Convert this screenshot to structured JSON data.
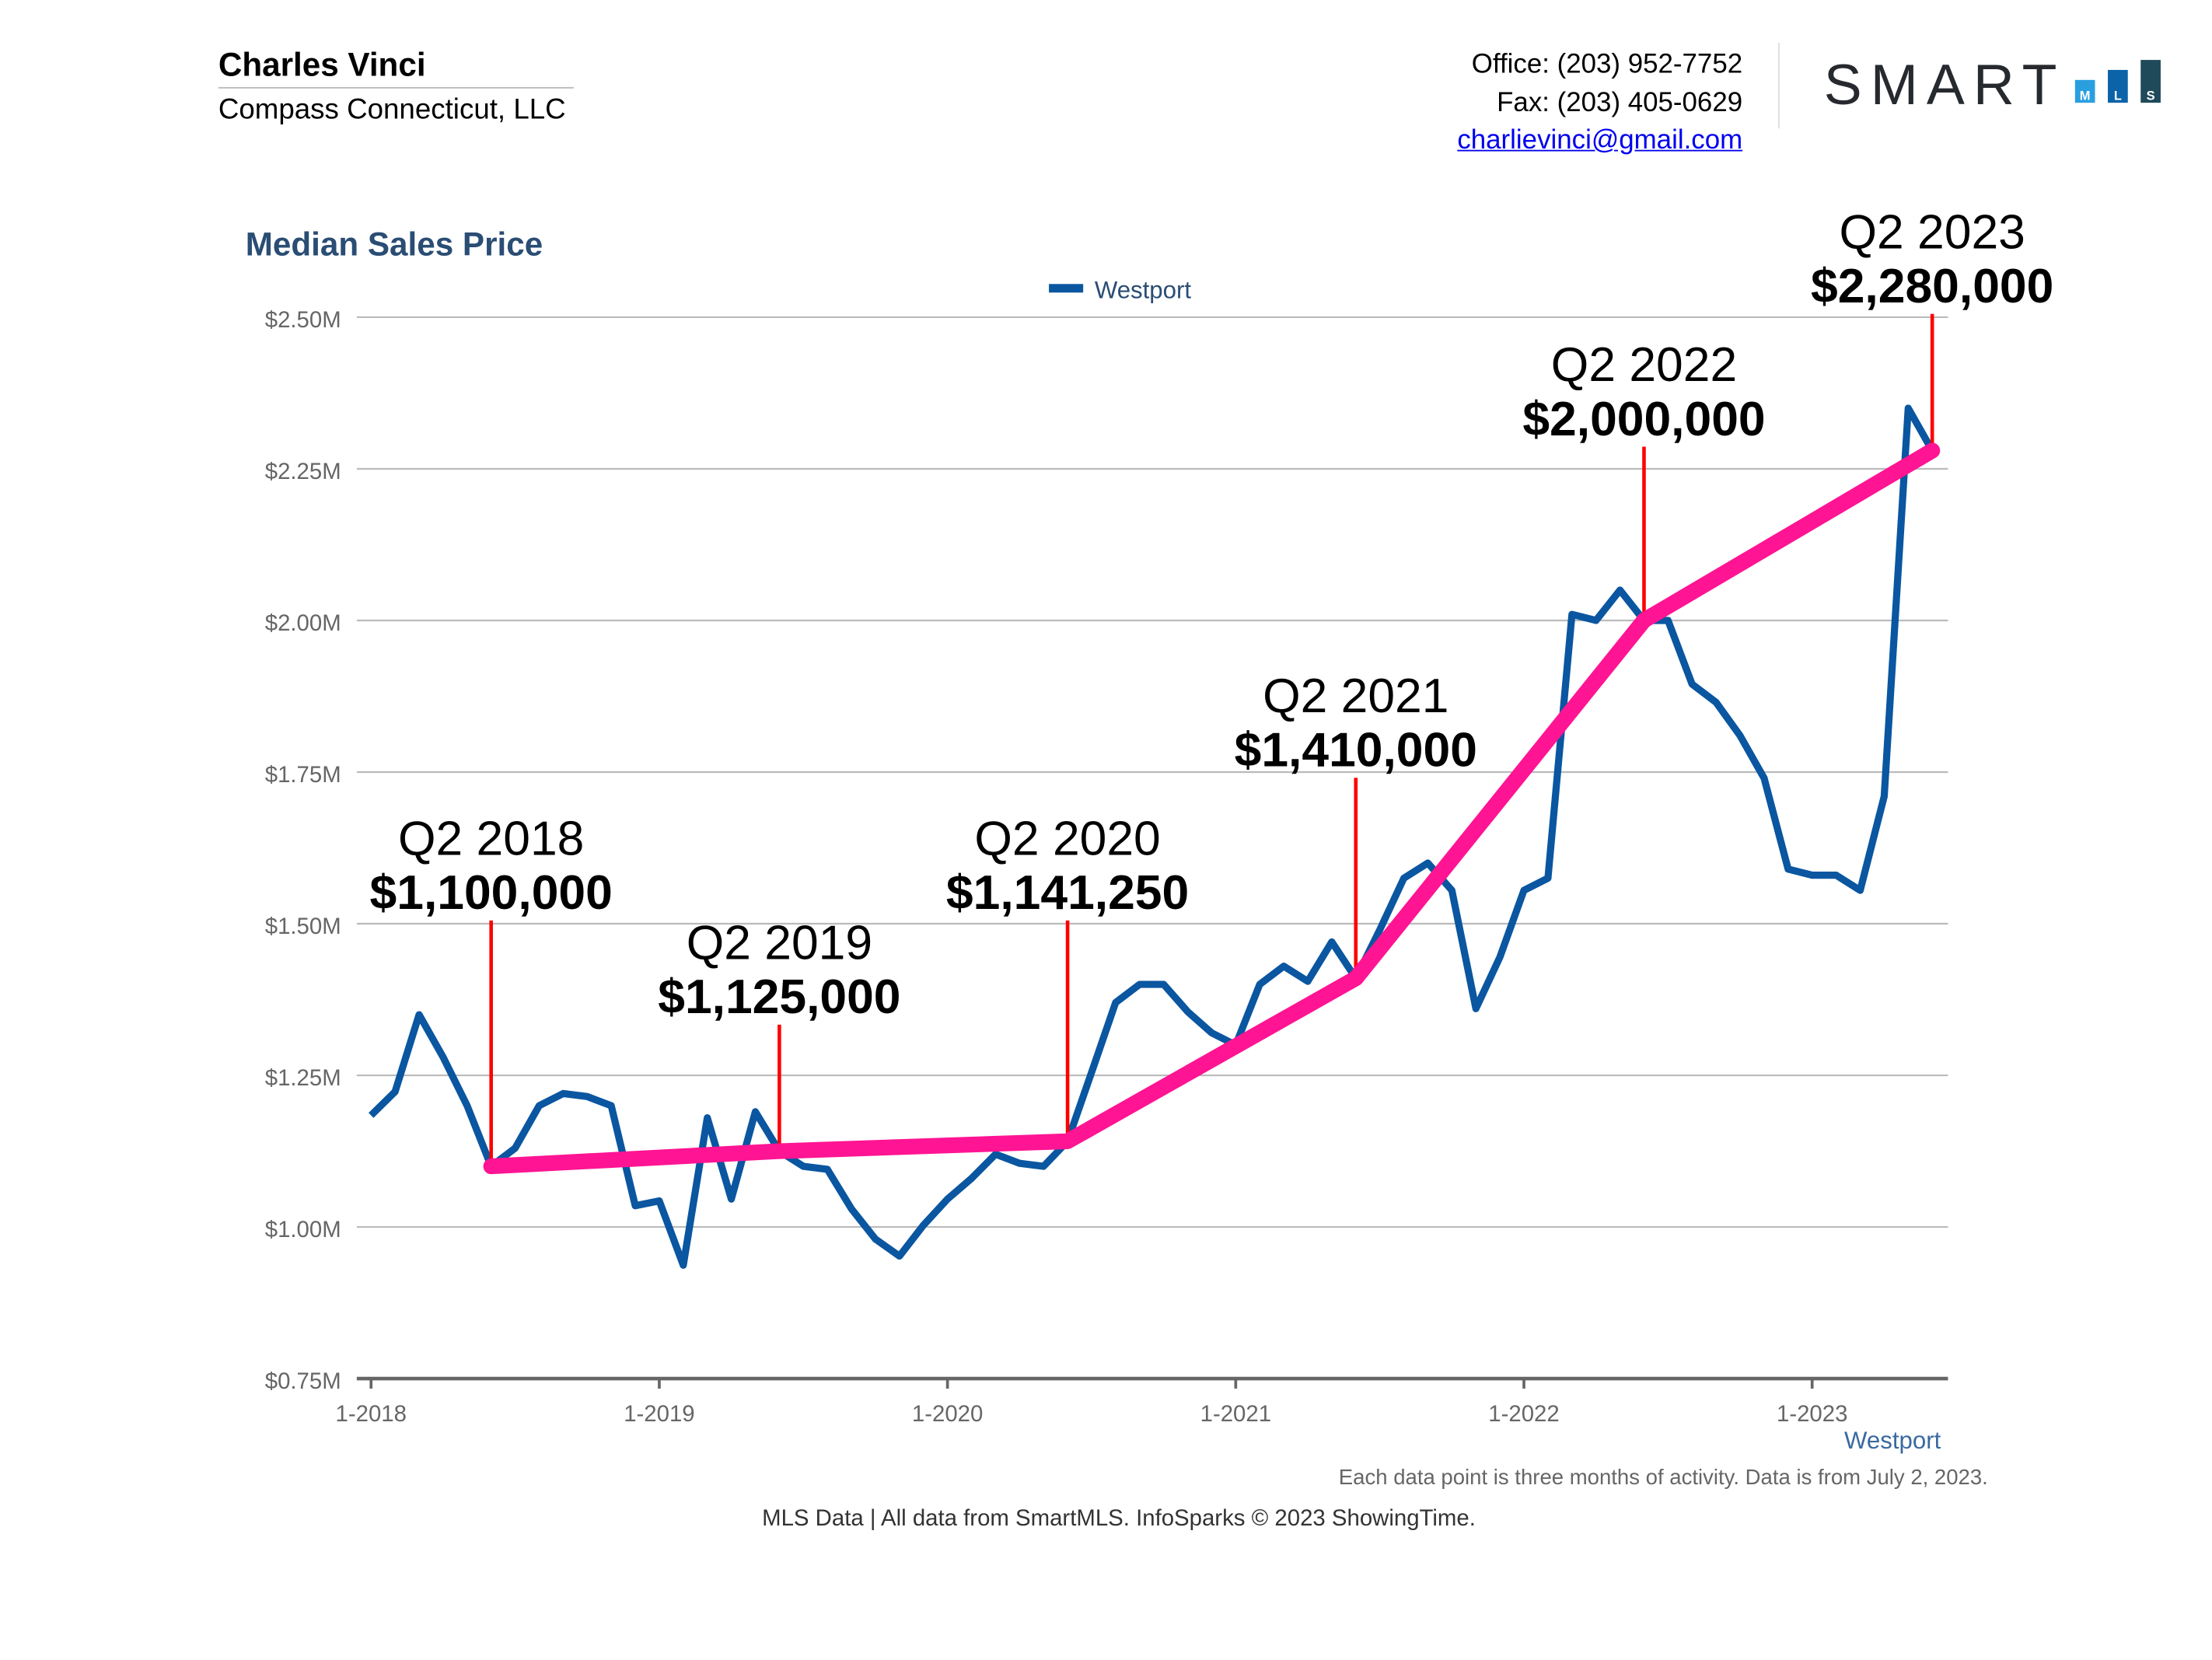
{
  "header": {
    "agent_name": "Charles Vinci",
    "company": "Compass Connecticut, LLC",
    "office": "Office: (203) 952-7752",
    "fax": "Fax: (203) 405-0629",
    "email": "charlievinci@gmail.com",
    "logo_text": "SMART",
    "logo_bars": [
      "M",
      "L",
      "S"
    ],
    "logo_colors": [
      "#2a9fe0",
      "#0b63a8",
      "#1f4a5a"
    ]
  },
  "footer": {
    "series_label": "Westport",
    "note": "Each data point is three months of activity. Data is from July 2, 2023.",
    "credit": "MLS Data | All data from SmartMLS. InfoSparks © 2023 ShowingTime."
  },
  "chart_data": {
    "type": "line",
    "title": "Median Sales Price",
    "legend": {
      "position": "top-center",
      "entries": [
        "Westport"
      ]
    },
    "grid": true,
    "ylim": [
      750000,
      2500000
    ],
    "y_ticks": [
      "$0.75M",
      "$1.00M",
      "$1.25M",
      "$1.50M",
      "$1.75M",
      "$2.00M",
      "$2.25M",
      "$2.50M"
    ],
    "x_ticks": [
      "1-2018",
      "1-2019",
      "1-2020",
      "1-2021",
      "1-2022",
      "1-2023"
    ],
    "x_start": "2018-01",
    "x_end": "2023-06",
    "series": [
      {
        "name": "Westport",
        "color": "#0a56a0",
        "values": [
          1184000,
          1223000,
          1350000,
          1280000,
          1200000,
          1100000,
          1130000,
          1200000,
          1220000,
          1215000,
          1200000,
          1035000,
          1043000,
          937000,
          1180000,
          1046000,
          1190000,
          1125000,
          1100000,
          1095000,
          1030000,
          980000,
          952000,
          1003000,
          1046000,
          1080000,
          1120000,
          1105000,
          1100000,
          1141250,
          1255000,
          1370000,
          1400000,
          1400000,
          1355000,
          1320000,
          1300000,
          1400000,
          1430000,
          1405000,
          1470000,
          1410000,
          1490000,
          1575000,
          1600000,
          1555000,
          1360000,
          1445000,
          1555000,
          1575000,
          2010000,
          2000000,
          2050000,
          2000000,
          2000000,
          1895000,
          1865000,
          1810000,
          1740000,
          1590000,
          1580000,
          1580000,
          1555000,
          1710000,
          2350000,
          2280000
        ]
      }
    ],
    "annotations": {
      "trend_color": "#ff1493",
      "marker_color": "#ff0000",
      "points": [
        {
          "date": "2018-06",
          "label": "Q2 2018",
          "value_text": "$1,100,000",
          "value": 1100000
        },
        {
          "date": "2019-06",
          "label": "Q2 2019",
          "value_text": "$1,125,000",
          "value": 1125000
        },
        {
          "date": "2020-06",
          "label": "Q2 2020",
          "value_text": "$1,141,250",
          "value": 1141250
        },
        {
          "date": "2021-06",
          "label": "Q2 2021",
          "value_text": "$1,410,000",
          "value": 1410000
        },
        {
          "date": "2022-06",
          "label": "Q2 2022",
          "value_text": "$2,000,000",
          "value": 2000000
        },
        {
          "date": "2023-06",
          "label": "Q2 2023",
          "value_text": "$2,280,000",
          "value": 2280000
        }
      ]
    }
  }
}
